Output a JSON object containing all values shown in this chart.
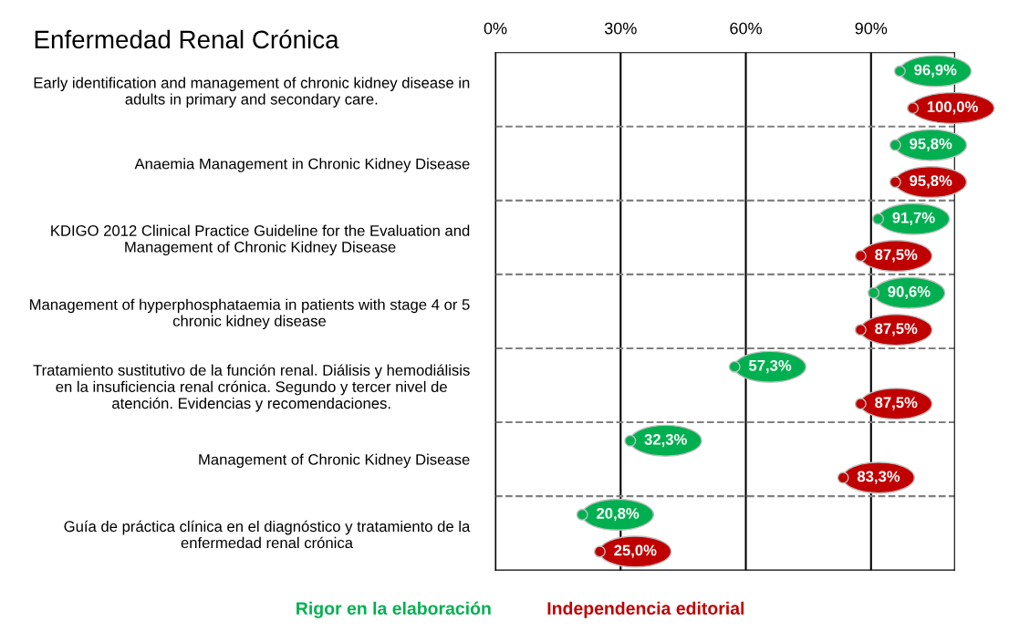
{
  "chart_data": {
    "type": "scatter",
    "title": "Enfermedad Renal Crónica",
    "categories": [
      "Early identification and management of chronic kidney disease in\nadults in primary and secondary care.",
      "Anaemia Management in Chronic Kidney Disease",
      "KDIGO 2012 Clinical Practice Guideline for the Evaluation and\nManagement of Chronic Kidney Disease",
      "Management of hyperphosphataemia in patients with stage 4 or 5\nchronic kidney disease",
      "Tratamiento sustitutivo de la función renal. Diálisis y hemodiálisis\nen la insuficiencia renal crónica. Segundo y tercer nivel de\natención. Evidencias y recomendaciones.",
      "Management of Chronic Kidney Disease",
      "Guía de práctica clínica en el diagnóstico y tratamiento de la\nenfermedad renal crónica"
    ],
    "orientation": "horizontal",
    "series": [
      {
        "name": "Rigor en la elaboración",
        "color": "#00b050",
        "values": [
          96.9,
          95.8,
          91.7,
          90.6,
          57.3,
          32.3,
          20.8
        ],
        "value_labels": [
          "96,9%",
          "95,8%",
          "91,7%",
          "90,6%",
          "57,3%",
          "32,3%",
          "20,8%"
        ]
      },
      {
        "name": "Independencia editorial",
        "color": "#c00000",
        "values": [
          100.0,
          95.8,
          87.5,
          87.5,
          87.5,
          83.3,
          25.0
        ],
        "value_labels": [
          "100,0%",
          "95,8%",
          "87,5%",
          "87,5%",
          "87,5%",
          "83,3%",
          "25,0%"
        ]
      }
    ],
    "xlim": [
      0,
      110
    ],
    "xticks": [
      {
        "value": 0,
        "label": "0%"
      },
      {
        "value": 30,
        "label": "30%"
      },
      {
        "value": 60,
        "label": "60%"
      },
      {
        "value": 90,
        "label": "90%"
      }
    ],
    "grid": true,
    "marker": "circle"
  }
}
